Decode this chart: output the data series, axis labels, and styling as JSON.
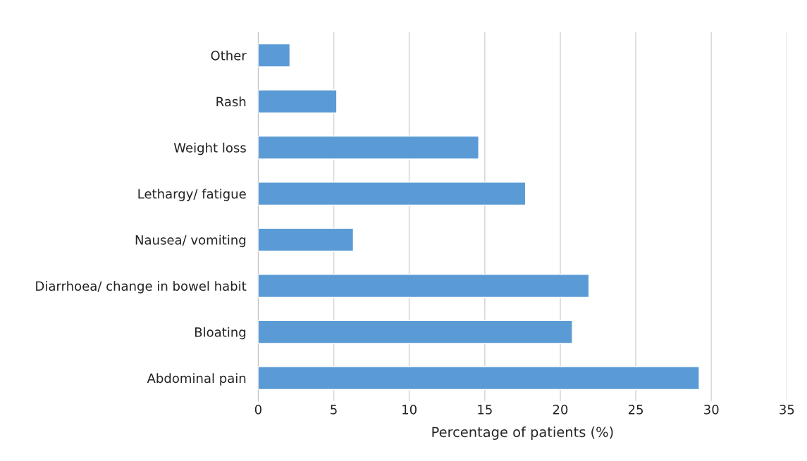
{
  "chart_data": {
    "type": "bar",
    "orientation": "horizontal",
    "categories": [
      "Other",
      "Rash",
      "Weight loss",
      "Lethargy/ fatigue",
      "Nausea/ vomiting",
      "Diarrhoea/ change in bowel habit",
      "Bloating",
      "Abdominal pain"
    ],
    "values": [
      2.1,
      5.2,
      14.6,
      17.7,
      6.3,
      21.9,
      20.8,
      29.2
    ],
    "color": "#5b9bd5",
    "xlabel": "Percentage of patients (%)",
    "xlim": [
      0,
      35
    ],
    "xticks": [
      0,
      5,
      10,
      15,
      20,
      25,
      30,
      35
    ],
    "grid": "x"
  }
}
